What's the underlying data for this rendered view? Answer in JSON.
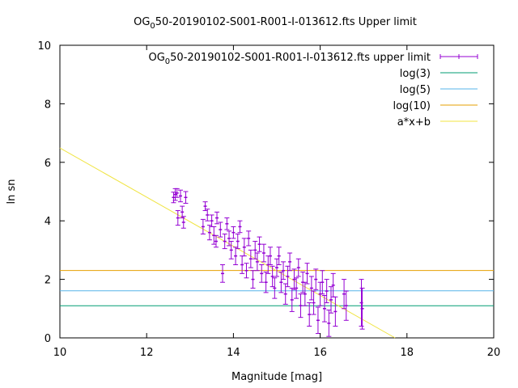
{
  "chart_data": {
    "type": "scatter",
    "title_prefix": "OG",
    "title_subscript": "0",
    "title_suffix": "50-20190102-S001-R001-I-013612.fts Upper limit",
    "xlabel": "Magnitude [mag]",
    "ylabel": "ln sn",
    "xlim": [
      10,
      20
    ],
    "ylim": [
      0,
      10
    ],
    "xticks": [
      "10",
      "12",
      "14",
      "16",
      "18",
      "20"
    ],
    "yticks": [
      "0",
      "2",
      "4",
      "6",
      "8",
      "10"
    ],
    "grid": false,
    "legend_position": "top-right",
    "legend": [
      {
        "prefix": "OG",
        "sub": "0",
        "suffix": "50-20190102-S001-R001-I-013612.fts upper limit",
        "color": "#9400d3",
        "style": "errorbars"
      },
      {
        "prefix": "log(3)",
        "sub": "",
        "suffix": "",
        "color": "#009e73",
        "style": "line"
      },
      {
        "prefix": "log(5)",
        "sub": "",
        "suffix": "",
        "color": "#56b4e9",
        "style": "line"
      },
      {
        "prefix": "log(10)",
        "sub": "",
        "suffix": "",
        "color": "#e69f00",
        "style": "line"
      },
      {
        "prefix": "a*x+b",
        "sub": "",
        "suffix": "",
        "color": "#f0e442",
        "style": "line"
      }
    ],
    "hlines": [
      {
        "y": 1.0986,
        "color": "#009e73"
      },
      {
        "y": 1.6094,
        "color": "#56b4e9"
      },
      {
        "y": 2.3026,
        "color": "#e69f00"
      }
    ],
    "fit_line": {
      "slope": -0.84,
      "intercept": 14.89,
      "color": "#f0e442"
    },
    "series_color": "#9400d3",
    "points": [
      [
        12.62,
        4.8,
        0.18
      ],
      [
        12.66,
        4.9,
        0.2
      ],
      [
        12.7,
        4.95,
        0.15
      ],
      [
        12.72,
        4.1,
        0.25
      ],
      [
        12.78,
        4.85,
        0.2
      ],
      [
        12.82,
        4.3,
        0.2
      ],
      [
        12.85,
        3.95,
        0.2
      ],
      [
        12.9,
        4.8,
        0.2
      ],
      [
        13.3,
        3.8,
        0.25
      ],
      [
        13.35,
        4.5,
        0.15
      ],
      [
        13.4,
        4.2,
        0.2
      ],
      [
        13.45,
        3.6,
        0.25
      ],
      [
        13.5,
        4.0,
        0.2
      ],
      [
        13.55,
        3.5,
        0.3
      ],
      [
        13.6,
        3.3,
        0.2
      ],
      [
        13.62,
        4.1,
        0.2
      ],
      [
        13.7,
        3.7,
        0.25
      ],
      [
        13.75,
        2.2,
        0.3
      ],
      [
        13.8,
        3.3,
        0.25
      ],
      [
        13.85,
        3.9,
        0.2
      ],
      [
        13.9,
        3.4,
        0.25
      ],
      [
        13.95,
        3.0,
        0.3
      ],
      [
        14.0,
        3.6,
        0.2
      ],
      [
        14.05,
        2.8,
        0.3
      ],
      [
        14.1,
        3.3,
        0.25
      ],
      [
        14.15,
        3.8,
        0.2
      ],
      [
        14.2,
        2.5,
        0.3
      ],
      [
        14.25,
        3.1,
        0.3
      ],
      [
        14.3,
        2.3,
        0.25
      ],
      [
        14.35,
        3.4,
        0.25
      ],
      [
        14.4,
        2.7,
        0.3
      ],
      [
        14.45,
        2.0,
        0.3
      ],
      [
        14.5,
        3.0,
        0.3
      ],
      [
        14.55,
        2.6,
        0.3
      ],
      [
        14.6,
        3.2,
        0.25
      ],
      [
        14.65,
        2.2,
        0.3
      ],
      [
        14.7,
        2.9,
        0.3
      ],
      [
        14.75,
        1.9,
        0.35
      ],
      [
        14.8,
        2.5,
        0.3
      ],
      [
        14.85,
        2.8,
        0.3
      ],
      [
        14.9,
        2.1,
        0.35
      ],
      [
        14.95,
        1.7,
        0.35
      ],
      [
        15.0,
        2.4,
        0.3
      ],
      [
        15.05,
        2.8,
        0.3
      ],
      [
        15.1,
        1.9,
        0.35
      ],
      [
        15.15,
        2.3,
        0.3
      ],
      [
        15.2,
        1.5,
        0.35
      ],
      [
        15.25,
        2.1,
        0.35
      ],
      [
        15.3,
        2.6,
        0.3
      ],
      [
        15.35,
        1.3,
        0.4
      ],
      [
        15.4,
        2.0,
        0.35
      ],
      [
        15.45,
        1.7,
        0.35
      ],
      [
        15.5,
        2.4,
        0.3
      ],
      [
        15.55,
        1.1,
        0.4
      ],
      [
        15.6,
        1.9,
        0.35
      ],
      [
        15.65,
        1.5,
        0.4
      ],
      [
        15.7,
        2.2,
        0.35
      ],
      [
        15.75,
        0.8,
        0.4
      ],
      [
        15.8,
        1.7,
        0.4
      ],
      [
        15.85,
        1.2,
        0.4
      ],
      [
        15.9,
        2.0,
        0.35
      ],
      [
        15.95,
        0.6,
        0.45
      ],
      [
        16.0,
        1.5,
        0.4
      ],
      [
        16.05,
        1.9,
        0.4
      ],
      [
        16.1,
        1.0,
        0.45
      ],
      [
        16.15,
        1.6,
        0.4
      ],
      [
        16.2,
        0.5,
        0.45
      ],
      [
        16.25,
        1.3,
        0.45
      ],
      [
        16.3,
        1.8,
        0.4
      ],
      [
        16.35,
        0.9,
        0.5
      ],
      [
        16.55,
        1.5,
        0.5
      ],
      [
        16.6,
        1.1,
        0.5
      ],
      [
        16.95,
        1.2,
        0.8
      ],
      [
        16.97,
        1.0,
        0.7
      ]
    ]
  }
}
